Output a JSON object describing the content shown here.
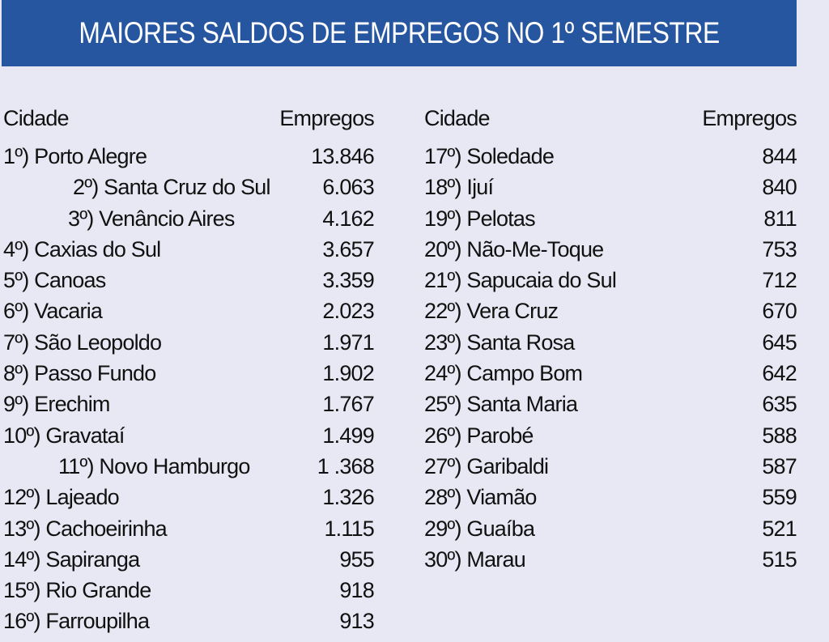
{
  "title": "MAIORES SALDOS DE EMPREGOS NO 1º SEMESTRE",
  "colors": {
    "banner": "#2756a0",
    "background": "#e8e8f4",
    "text": "#111111"
  },
  "columns": {
    "header_city": "Cidade",
    "header_jobs": "Empregos"
  },
  "left": [
    {
      "city": "1º) Porto Alegre",
      "jobs": "13.846"
    },
    {
      "city": "2º) Santa Cruz do Sul",
      "jobs": "6.063"
    },
    {
      "city": "3º) Venâncio Aires",
      "jobs": "4.162"
    },
    {
      "city": "4º) Caxias do Sul",
      "jobs": "3.657"
    },
    {
      "city": "5º) Canoas",
      "jobs": "3.359"
    },
    {
      "city": "6º) Vacaria",
      "jobs": "2.023"
    },
    {
      "city": "7º) São Leopoldo",
      "jobs": "1.971"
    },
    {
      "city": "8º) Passo Fundo",
      "jobs": "1.902"
    },
    {
      "city": "9º) Erechim",
      "jobs": "1.767"
    },
    {
      "city": "10º) Gravataí",
      "jobs": "1.499"
    },
    {
      "city": "11º) Novo Hamburgo",
      "jobs": "1 .368"
    },
    {
      "city": "12º) Lajeado",
      "jobs": "1.326"
    },
    {
      "city": "13º) Cachoeirinha",
      "jobs": "1.115"
    },
    {
      "city": "14º) Sapiranga",
      "jobs": "955"
    },
    {
      "city": "15º) Rio Grande",
      "jobs": "918"
    },
    {
      "city": "16º) Farroupilha",
      "jobs": "913"
    }
  ],
  "right": [
    {
      "city": "17º) Soledade",
      "jobs": "844"
    },
    {
      "city": "18º) Ijuí",
      "jobs": "840"
    },
    {
      "city": "19º) Pelotas",
      "jobs": "811"
    },
    {
      "city": "20º) Não-Me-Toque",
      "jobs": "753"
    },
    {
      "city": "21º) Sapucaia do Sul",
      "jobs": "712"
    },
    {
      "city": "22º) Vera Cruz",
      "jobs": "670"
    },
    {
      "city": "23º) Santa Rosa",
      "jobs": "645"
    },
    {
      "city": "24º) Campo Bom",
      "jobs": "642"
    },
    {
      "city": "25º) Santa Maria",
      "jobs": "635"
    },
    {
      "city": "26º) Parobé",
      "jobs": "588"
    },
    {
      "city": "27º) Garibaldi",
      "jobs": "587"
    },
    {
      "city": "28º) Viamão",
      "jobs": "559"
    },
    {
      "city": "29º) Guaíba",
      "jobs": "521"
    },
    {
      "city": "30º) Marau",
      "jobs": "515"
    }
  ]
}
